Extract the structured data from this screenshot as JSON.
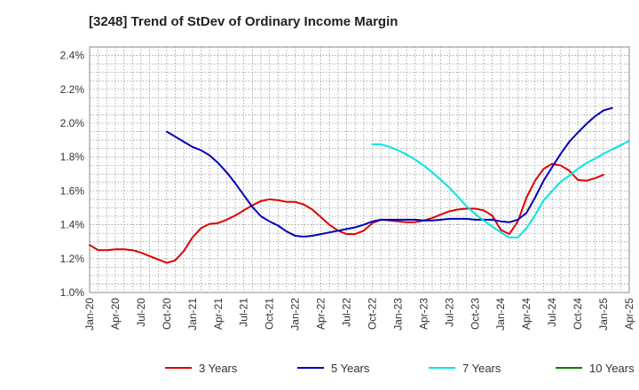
{
  "chart_data": {
    "type": "line",
    "title": "[3248]  Trend of StDev of Ordinary Income Margin",
    "xlabel": "",
    "ylabel": "",
    "x_ticks": [
      "Jan-20",
      "Apr-20",
      "Jul-20",
      "Oct-20",
      "Jan-21",
      "Apr-21",
      "Jul-21",
      "Oct-21",
      "Jan-22",
      "Apr-22",
      "Jul-22",
      "Oct-22",
      "Jan-23",
      "Apr-23",
      "Jul-23",
      "Oct-23",
      "Jan-24",
      "Apr-24",
      "Jul-24",
      "Oct-24",
      "Jan-25",
      "Apr-25"
    ],
    "y_ticks": [
      "1.0%",
      "1.2%",
      "1.4%",
      "1.6%",
      "1.8%",
      "2.0%",
      "2.2%",
      "2.4%"
    ],
    "ylim": [
      1.0,
      2.45
    ],
    "grid": true,
    "legend_position": "bottom",
    "series": [
      {
        "name": "3 Years",
        "color": "#dd0000",
        "start_index": 0,
        "values": [
          1.28,
          1.25,
          1.25,
          1.255,
          1.255,
          1.25,
          1.235,
          1.215,
          1.195,
          1.175,
          1.19,
          1.245,
          1.325,
          1.38,
          1.405,
          1.41,
          1.43,
          1.455,
          1.485,
          1.515,
          1.54,
          1.55,
          1.545,
          1.535,
          1.535,
          1.52,
          1.49,
          1.445,
          1.4,
          1.365,
          1.345,
          1.345,
          1.365,
          1.41,
          1.43,
          1.425,
          1.42,
          1.415,
          1.415,
          1.425,
          1.44,
          1.46,
          1.48,
          1.49,
          1.495,
          1.495,
          1.485,
          1.455,
          1.37,
          1.345,
          1.42,
          1.56,
          1.66,
          1.73,
          1.76,
          1.75,
          1.72,
          1.665,
          1.66,
          1.675,
          1.695
        ]
      },
      {
        "name": "5 Years",
        "color": "#0000bb",
        "start_index": 9,
        "values": [
          1.95,
          1.92,
          1.89,
          1.86,
          1.84,
          1.81,
          1.765,
          1.71,
          1.645,
          1.575,
          1.505,
          1.45,
          1.42,
          1.395,
          1.36,
          1.335,
          1.33,
          1.335,
          1.345,
          1.355,
          1.365,
          1.375,
          1.385,
          1.4,
          1.42,
          1.43,
          1.43,
          1.43,
          1.43,
          1.43,
          1.425,
          1.425,
          1.43,
          1.435,
          1.435,
          1.435,
          1.43,
          1.43,
          1.43,
          1.42,
          1.415,
          1.43,
          1.47,
          1.56,
          1.66,
          1.74,
          1.82,
          1.89,
          1.945,
          1.995,
          2.04,
          2.075,
          2.09
        ]
      },
      {
        "name": "7 Years",
        "color": "#00e5e5",
        "start_index": 33,
        "values": [
          1.875,
          1.875,
          1.86,
          1.84,
          1.815,
          1.785,
          1.75,
          1.71,
          1.665,
          1.62,
          1.565,
          1.51,
          1.465,
          1.425,
          1.39,
          1.355,
          1.325,
          1.325,
          1.38,
          1.455,
          1.545,
          1.6,
          1.655,
          1.69,
          1.73,
          1.765,
          1.79,
          1.82,
          1.845,
          1.87,
          1.895
        ]
      },
      {
        "name": "10 Years",
        "color": "#008000",
        "start_index": 0,
        "values": []
      }
    ]
  }
}
